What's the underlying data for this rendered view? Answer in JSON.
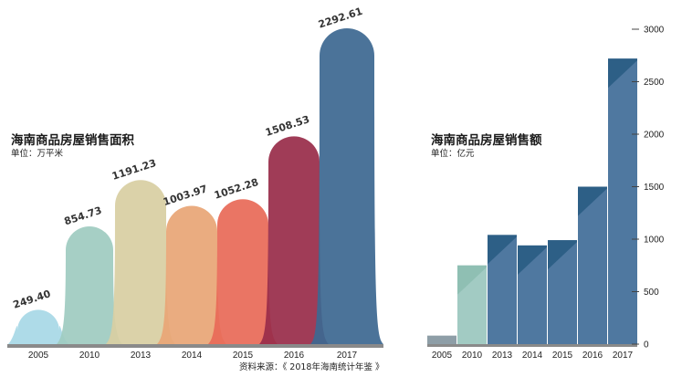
{
  "chart_data": [
    {
      "type": "bar",
      "title": "海南商品房屋销售面积",
      "unit": "单位：万平米",
      "categories": [
        "2005",
        "2010",
        "2013",
        "2014",
        "2015",
        "2016",
        "2017"
      ],
      "values": [
        249.4,
        854.73,
        1191.23,
        1003.97,
        1052.28,
        1508.53,
        2292.61
      ],
      "value_labels": [
        "249.40",
        "854.73",
        "1191.23",
        "1003.97",
        "1052.28",
        "1508.53",
        "2292.61"
      ],
      "colors": [
        "#a8d8e6",
        "#9fcbc1",
        "#d8cfa2",
        "#e8a676",
        "#e86a58",
        "#992d4a",
        "#3d6891"
      ]
    },
    {
      "type": "bar",
      "title": "海南商品房屋销售额",
      "unit": "单位：亿元",
      "categories": [
        "2005",
        "2010",
        "2013",
        "2014",
        "2015",
        "2016",
        "2017"
      ],
      "values": [
        80,
        750,
        1040,
        940,
        990,
        1500,
        2720
      ],
      "ylim": [
        0,
        3000
      ],
      "yticks": [
        "0",
        "500",
        "1000",
        "1500",
        "2000",
        "2500",
        "3000"
      ],
      "grid": false,
      "colors": [
        "#8e9ea7",
        "#a2cbc3",
        "#4f78a0",
        "#4f78a0",
        "#4f78a0",
        "#4f78a0",
        "#4f78a0"
      ],
      "accent_colors": [
        "#8e9ea7",
        "#8fbfb3",
        "#2d5f86",
        "#2d5f86",
        "#2d5f86",
        "#2d5f86",
        "#2d5f86"
      ]
    }
  ],
  "source": "资料来源：《 2018年海南统计年鉴 》"
}
